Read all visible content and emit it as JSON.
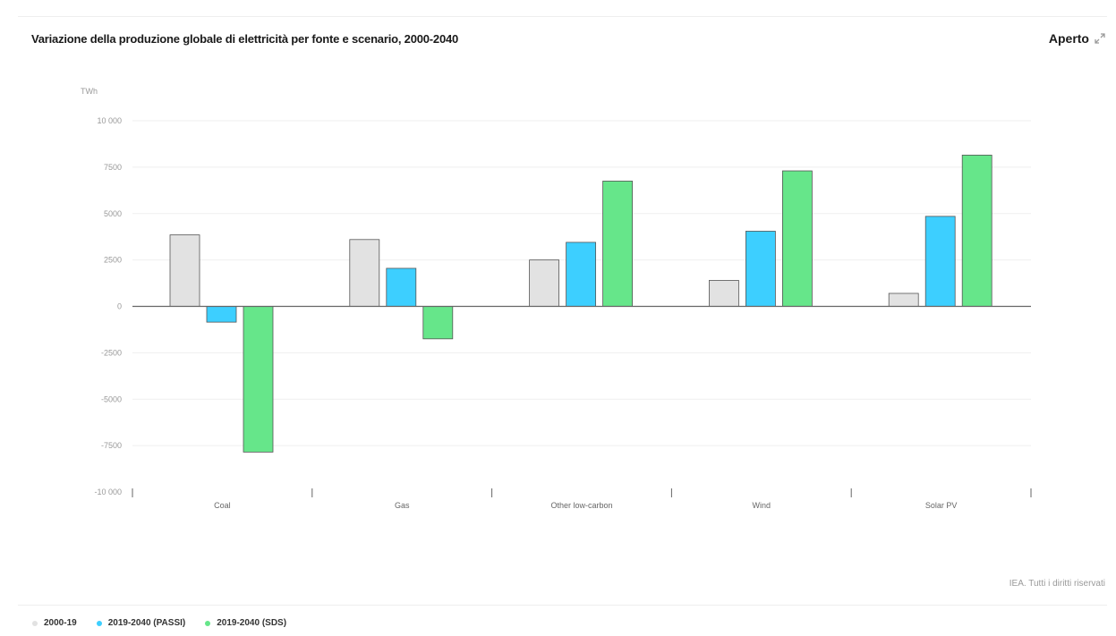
{
  "header": {
    "title": "Variazione della produzione globale di elettricità per fonte e scenario, 2000-2040",
    "open_label": "Aperto",
    "open_icon": "expand-arrows-icon"
  },
  "source": "IEA. Tutti i diritti riservati",
  "chart_data": {
    "type": "bar",
    "title": "Variazione della produzione globale di elettricità per fonte e scenario, 2000-2040",
    "ylabel": "TWh",
    "xlabel": "",
    "ylim": [
      -10000,
      10000
    ],
    "yticks": [
      10000,
      7500,
      5000,
      2500,
      0,
      -2500,
      -5000,
      -7500,
      -10000
    ],
    "ytick_labels": [
      "10 000",
      "7500",
      "5000",
      "2500",
      "0",
      "-2500",
      "-5000",
      "-7500",
      "-10 000"
    ],
    "grid": true,
    "legend_position": "bottom-left",
    "categories": [
      "Coal",
      "Gas",
      "Other low-carbon",
      "Wind",
      "Solar PV"
    ],
    "series": [
      {
        "name": "2000-19",
        "color": "#e2e2e2",
        "values": [
          3850,
          3600,
          2500,
          1400,
          700
        ]
      },
      {
        "name": "2019-2040 (PASSI)",
        "color": "#3dcfff",
        "values": [
          -850,
          2050,
          3450,
          4050,
          4850
        ]
      },
      {
        "name": "2019-2040 (SDS)",
        "color": "#66e68a",
        "values": [
          -7850,
          -1750,
          6750,
          7300,
          8150
        ]
      }
    ]
  }
}
